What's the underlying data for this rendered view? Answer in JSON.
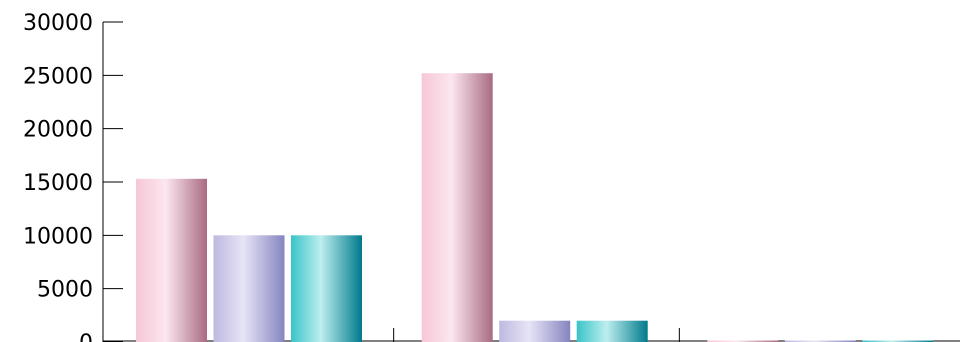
{
  "chart_data": {
    "type": "bar",
    "categories": [
      "",
      "",
      ""
    ],
    "series": [
      {
        "values": [
          15300,
          25200,
          50
        ]
      },
      {
        "values": [
          10000,
          2000,
          50
        ]
      },
      {
        "values": [
          10000,
          2000,
          50
        ]
      }
    ],
    "title": "",
    "xlabel": "",
    "ylabel": "",
    "ylim": [
      0,
      30000
    ],
    "yticks": [
      "0",
      "5000",
      "10000",
      "15000",
      "20000",
      "25000",
      "30000"
    ],
    "grid": false,
    "legend": "none",
    "colors": [
      {
        "dark": "#a86a82",
        "light": "#fce6ef",
        "base": "#f6c7d7"
      },
      {
        "dark": "#8585bf",
        "light": "#e7e4f6",
        "base": "#bdb9e0"
      },
      {
        "dark": "#007a8c",
        "light": "#bdeeee",
        "base": "#39c4c8"
      }
    ]
  }
}
